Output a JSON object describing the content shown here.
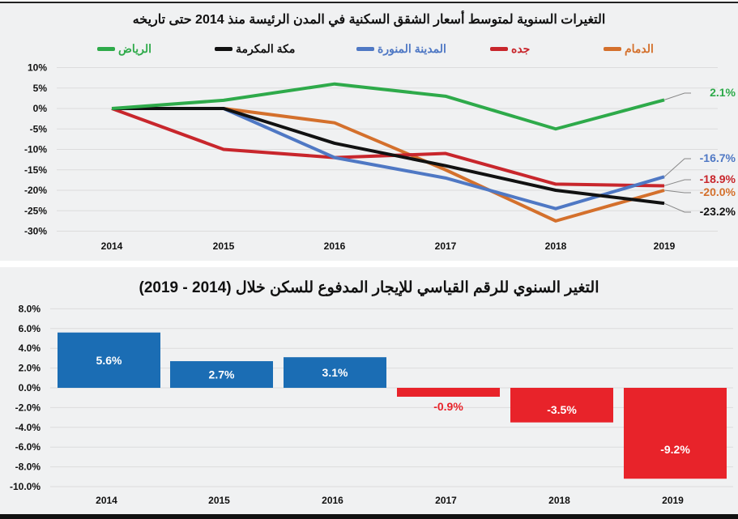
{
  "chart_data": [
    {
      "type": "line",
      "title": "التغيرات السنوية لمتوسط أسعار الشقق السكنية في المدن الرئيسة منذ 2014 حتى تاريخه",
      "x": [
        "2014",
        "2015",
        "2016",
        "2017",
        "2018",
        "2019"
      ],
      "ylim": [
        -30,
        10
      ],
      "yticks": [
        "10%",
        "5%",
        "0%",
        "-5%",
        "-10%",
        "-15%",
        "-20%",
        "-25%",
        "-30%"
      ],
      "ytick_values": [
        10,
        5,
        0,
        -5,
        -10,
        -15,
        -20,
        -25,
        -30
      ],
      "grid": true,
      "legend_placement": "top",
      "series": [
        {
          "name": "الدمام",
          "color": "#d4702c",
          "values": [
            0,
            0,
            -3.5,
            -15,
            -27.5,
            -20.0
          ],
          "end_label": "-20.0%"
        },
        {
          "name": "جده",
          "color": "#c8262c",
          "values": [
            0,
            -10,
            -12,
            -11,
            -18.5,
            -18.9
          ],
          "end_label": "-18.9%"
        },
        {
          "name": "المدينة المنورة",
          "color": "#4f78c4",
          "values": [
            0,
            0,
            -12,
            -17,
            -24.5,
            -16.7
          ],
          "end_label": "-16.7%"
        },
        {
          "name": "مكة المكرمة",
          "color": "#111111",
          "values": [
            0,
            0,
            -8.5,
            -14,
            -20,
            -23.2
          ],
          "end_label": "-23.2%"
        },
        {
          "name": "الرياض",
          "color": "#2eaa4a",
          "values": [
            0,
            2,
            6,
            3,
            -5,
            2.1
          ],
          "end_label": "2.1%"
        }
      ]
    },
    {
      "type": "bar",
      "title": "التغير السنوي للرقم القياسي للإيجار المدفوع للسكن  خلال (2014 - 2019)",
      "categories": [
        "2014",
        "2015",
        "2016",
        "2017",
        "2018",
        "2019"
      ],
      "values": [
        5.6,
        2.7,
        3.1,
        -0.9,
        -3.5,
        -9.2
      ],
      "data_labels": [
        "5.6%",
        "2.7%",
        "3.1%",
        "-0.9%",
        "-3.5%",
        "-9.2%"
      ],
      "ylim": [
        -10,
        8
      ],
      "yticks": [
        "8.0%",
        "6.0%",
        "4.0%",
        "2.0%",
        "0.0%",
        "-2.0%",
        "-4.0%",
        "-6.0%",
        "-8.0%",
        "-10.0%"
      ],
      "ytick_values": [
        8,
        6,
        4,
        2,
        0,
        -2,
        -4,
        -6,
        -8,
        -10
      ],
      "grid": true,
      "colors": {
        "positive": "#1b6db4",
        "negative": "#e8232a"
      }
    }
  ]
}
